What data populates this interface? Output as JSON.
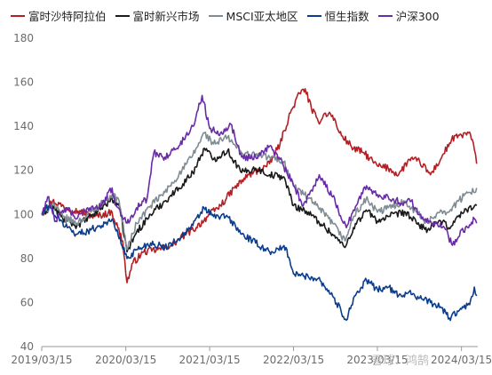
{
  "chart_data": {
    "type": "line",
    "x_ticks": [
      "2019/03/15",
      "2020/03/15",
      "2021/03/15",
      "2022/03/15",
      "2023/03/15",
      "2024/03/15"
    ],
    "ylim": [
      40,
      180
    ],
    "y_ticks": [
      "40",
      "60",
      "80",
      "100",
      "120",
      "140",
      "160",
      "180"
    ],
    "grid": false,
    "legend_position": "top",
    "watermark": "雪球：鸿鹄",
    "series": [
      {
        "name": "富时沙特阿拉伯",
        "color": "#b41f24",
        "points": [
          [
            "2019/03/15",
            100
          ],
          [
            "2019/05/01",
            106
          ],
          [
            "2019/07/01",
            103
          ],
          [
            "2019/09/01",
            101
          ],
          [
            "2019/11/01",
            99
          ],
          [
            "2020/01/15",
            101
          ],
          [
            "2020/03/01",
            88
          ],
          [
            "2020/03/20",
            69
          ],
          [
            "2020/04/15",
            78
          ],
          [
            "2020/06/01",
            83
          ],
          [
            "2020/08/01",
            84
          ],
          [
            "2020/10/01",
            86
          ],
          [
            "2020/12/01",
            91
          ],
          [
            "2021/01/15",
            94
          ],
          [
            "2021/03/15",
            100
          ],
          [
            "2021/05/01",
            104
          ],
          [
            "2021/07/01",
            112
          ],
          [
            "2021/09/01",
            118
          ],
          [
            "2021/10/15",
            120
          ],
          [
            "2021/12/01",
            123
          ],
          [
            "2022/01/15",
            132
          ],
          [
            "2022/03/01",
            146
          ],
          [
            "2022/04/10",
            155
          ],
          [
            "2022/05/05",
            157
          ],
          [
            "2022/06/01",
            148
          ],
          [
            "2022/07/01",
            142
          ],
          [
            "2022/08/01",
            146
          ],
          [
            "2022/09/01",
            145
          ],
          [
            "2022/10/01",
            137
          ],
          [
            "2022/12/01",
            130
          ],
          [
            "2023/01/15",
            128
          ],
          [
            "2023/03/15",
            122
          ],
          [
            "2023/05/01",
            121
          ],
          [
            "2023/06/15",
            118
          ],
          [
            "2023/08/01",
            125
          ],
          [
            "2023/09/15",
            124
          ],
          [
            "2023/11/01",
            118
          ],
          [
            "2023/12/15",
            125
          ],
          [
            "2024/02/01",
            134
          ],
          [
            "2024/03/15",
            136
          ],
          [
            "2024/04/15",
            137
          ],
          [
            "2024/05/01",
            134
          ],
          [
            "2024/05/20",
            123
          ]
        ]
      },
      {
        "name": "富时新兴市场",
        "color": "#1a1a1a",
        "points": [
          [
            "2019/03/15",
            100
          ],
          [
            "2019/05/01",
            104
          ],
          [
            "2019/06/15",
            98
          ],
          [
            "2019/08/15",
            95
          ],
          [
            "2019/10/15",
            99
          ],
          [
            "2020/01/15",
            107
          ],
          [
            "2020/02/15",
            104
          ],
          [
            "2020/03/20",
            83
          ],
          [
            "2020/05/01",
            92
          ],
          [
            "2020/07/01",
            100
          ],
          [
            "2020/09/01",
            106
          ],
          [
            "2020/11/01",
            112
          ],
          [
            "2021/01/01",
            119
          ],
          [
            "2021/02/20",
            130
          ],
          [
            "2021/04/01",
            125
          ],
          [
            "2021/06/01",
            129
          ],
          [
            "2021/08/01",
            119
          ],
          [
            "2021/10/01",
            121
          ],
          [
            "2021/12/01",
            118
          ],
          [
            "2022/02/01",
            117
          ],
          [
            "2022/03/15",
            104
          ],
          [
            "2022/05/01",
            102
          ],
          [
            "2022/07/01",
            97
          ],
          [
            "2022/09/01",
            91
          ],
          [
            "2022/10/25",
            85
          ],
          [
            "2022/12/01",
            94
          ],
          [
            "2023/01/25",
            102
          ],
          [
            "2023/03/15",
            97
          ],
          [
            "2023/05/01",
            99
          ],
          [
            "2023/07/15",
            101
          ],
          [
            "2023/09/01",
            96
          ],
          [
            "2023/10/20",
            93
          ],
          [
            "2023/12/15",
            97
          ],
          [
            "2024/01/20",
            94
          ],
          [
            "2024/03/01",
            99
          ],
          [
            "2024/04/15",
            103
          ],
          [
            "2024/05/20",
            104
          ]
        ]
      },
      {
        "name": "MSCI亚太地区",
        "color": "#7f8c94",
        "points": [
          [
            "2019/03/15",
            100
          ],
          [
            "2019/05/01",
            105
          ],
          [
            "2019/06/15",
            99
          ],
          [
            "2019/08/15",
            96
          ],
          [
            "2019/10/15",
            101
          ],
          [
            "2020/01/15",
            109
          ],
          [
            "2020/02/15",
            106
          ],
          [
            "2020/03/20",
            84
          ],
          [
            "2020/05/01",
            96
          ],
          [
            "2020/07/01",
            104
          ],
          [
            "2020/09/01",
            110
          ],
          [
            "2020/11/01",
            118
          ],
          [
            "2021/01/01",
            127
          ],
          [
            "2021/02/20",
            137
          ],
          [
            "2021/04/01",
            132
          ],
          [
            "2021/06/01",
            135
          ],
          [
            "2021/08/01",
            128
          ],
          [
            "2021/10/01",
            127
          ],
          [
            "2021/12/01",
            126
          ],
          [
            "2022/02/01",
            124
          ],
          [
            "2022/03/15",
            113
          ],
          [
            "2022/05/01",
            109
          ],
          [
            "2022/07/01",
            103
          ],
          [
            "2022/09/01",
            96
          ],
          [
            "2022/10/25",
            88
          ],
          [
            "2022/12/01",
            99
          ],
          [
            "2023/01/25",
            107
          ],
          [
            "2023/03/15",
            101
          ],
          [
            "2023/05/01",
            103
          ],
          [
            "2023/07/15",
            106
          ],
          [
            "2023/09/01",
            101
          ],
          [
            "2023/10/20",
            96
          ],
          [
            "2023/12/15",
            102
          ],
          [
            "2024/01/20",
            101
          ],
          [
            "2024/03/01",
            106
          ],
          [
            "2024/04/15",
            110
          ],
          [
            "2024/05/20",
            112
          ]
        ]
      },
      {
        "name": "恒生指数",
        "color": "#0b3d8c",
        "points": [
          [
            "2019/03/15",
            100
          ],
          [
            "2019/04/15",
            104
          ],
          [
            "2019/06/01",
            97
          ],
          [
            "2019/08/15",
            91
          ],
          [
            "2019/10/15",
            93
          ],
          [
            "2019/12/15",
            96
          ],
          [
            "2020/01/20",
            97
          ],
          [
            "2020/03/20",
            80
          ],
          [
            "2020/05/01",
            84
          ],
          [
            "2020/07/01",
            87
          ],
          [
            "2020/09/01",
            85
          ],
          [
            "2020/11/01",
            89
          ],
          [
            "2021/01/01",
            95
          ],
          [
            "2021/02/18",
            103
          ],
          [
            "2021/04/01",
            99
          ],
          [
            "2021/06/01",
            99
          ],
          [
            "2021/08/01",
            91
          ],
          [
            "2021/10/01",
            87
          ],
          [
            "2021/12/01",
            83
          ],
          [
            "2022/02/10",
            85
          ],
          [
            "2022/03/15",
            73
          ],
          [
            "2022/05/01",
            72
          ],
          [
            "2022/07/01",
            71
          ],
          [
            "2022/09/01",
            63
          ],
          [
            "2022/10/31",
            52
          ],
          [
            "2022/12/01",
            62
          ],
          [
            "2023/01/27",
            70
          ],
          [
            "2023/03/15",
            66
          ],
          [
            "2023/05/01",
            67
          ],
          [
            "2023/06/15",
            63
          ],
          [
            "2023/08/01",
            65
          ],
          [
            "2023/09/15",
            62
          ],
          [
            "2023/11/01",
            60
          ],
          [
            "2023/12/15",
            58
          ],
          [
            "2024/01/22",
            53
          ],
          [
            "2024/03/15",
            57
          ],
          [
            "2024/04/20",
            59
          ],
          [
            "2024/05/10",
            67
          ],
          [
            "2024/05/20",
            63
          ]
        ]
      },
      {
        "name": "沪深300",
        "color": "#6a2ba8",
        "points": [
          [
            "2019/03/15",
            100
          ],
          [
            "2019/04/10",
            108
          ],
          [
            "2019/05/15",
            97
          ],
          [
            "2019/07/01",
            103
          ],
          [
            "2019/08/15",
            98
          ],
          [
            "2019/10/01",
            103
          ],
          [
            "2019/12/01",
            104
          ],
          [
            "2020/01/15",
            112
          ],
          [
            "2020/02/01",
            104
          ],
          [
            "2020/03/20",
            96
          ],
          [
            "2020/05/01",
            103
          ],
          [
            "2020/06/15",
            107
          ],
          [
            "2020/07/15",
            128
          ],
          [
            "2020/09/01",
            126
          ],
          [
            "2020/11/01",
            131
          ],
          [
            "2021/01/01",
            140
          ],
          [
            "2021/02/10",
            154
          ],
          [
            "2021/03/15",
            139
          ],
          [
            "2021/05/01",
            137
          ],
          [
            "2021/06/15",
            141
          ],
          [
            "2021/08/01",
            126
          ],
          [
            "2021/10/01",
            126
          ],
          [
            "2021/12/01",
            131
          ],
          [
            "2022/01/15",
            125
          ],
          [
            "2022/03/15",
            113
          ],
          [
            "2022/04/26",
            104
          ],
          [
            "2022/06/01",
            111
          ],
          [
            "2022/07/05",
            118
          ],
          [
            "2022/09/01",
            108
          ],
          [
            "2022/10/31",
            94
          ],
          [
            "2022/12/01",
            102
          ],
          [
            "2023/01/27",
            113
          ],
          [
            "2023/03/15",
            109
          ],
          [
            "2023/05/01",
            108
          ],
          [
            "2023/07/01",
            105
          ],
          [
            "2023/08/01",
            107
          ],
          [
            "2023/09/15",
            100
          ],
          [
            "2023/11/01",
            97
          ],
          [
            "2024/01/01",
            94
          ],
          [
            "2024/02/05",
            86
          ],
          [
            "2024/03/15",
            93
          ],
          [
            "2024/04/15",
            94
          ],
          [
            "2024/05/10",
            98
          ],
          [
            "2024/05/20",
            96
          ]
        ]
      }
    ]
  }
}
